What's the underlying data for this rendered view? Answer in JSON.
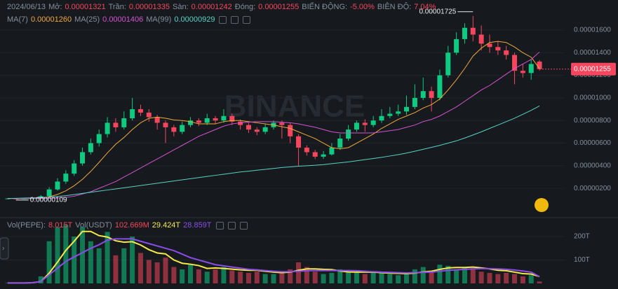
{
  "chart_data": {
    "type": "candlestick",
    "header": {
      "date": "2024/06/13",
      "items": [
        {
          "label": "Mở:",
          "value": "0.00001321"
        },
        {
          "label": "Trần:",
          "value": "0.00001335"
        },
        {
          "label": "Sàn:",
          "value": "0.00001242"
        },
        {
          "label": "Đóng:",
          "value": "0.00001255"
        },
        {
          "label": "BIẾN ĐỘNG:",
          "value": "-5.00%"
        },
        {
          "label": "BIÊN ĐỘ:",
          "value": "7.04%"
        }
      ]
    },
    "watermark": "BINANCE",
    "up_color": "#0ecb81",
    "down_color": "#f6465d",
    "grid": true,
    "ylim": [
      -2.2e-07,
      1.866e-05
    ],
    "yticks": [
      {
        "value": 1.6e-05,
        "label": "0.00001600"
      },
      {
        "value": 1.4e-05,
        "label": "0.00001400"
      },
      {
        "value": 1.2e-05,
        "label": "0.00001200"
      },
      {
        "value": 1e-05,
        "label": "0.00001000"
      },
      {
        "value": 8e-06,
        "label": "0.00000800"
      },
      {
        "value": 6e-06,
        "label": "0.00000600"
      },
      {
        "value": 4e-06,
        "label": "0.00000400"
      },
      {
        "value": 2e-06,
        "label": "0.00000200"
      }
    ],
    "last_price_label": "0.00001255",
    "high_label": "0.00001725",
    "low_label": "0.00000109",
    "ohlc": {
      "open": [
        1.1e-06,
        1.1e-06,
        1.09e-06,
        1.11e-06,
        1.12e-06,
        1.3e-06,
        1.9e-06,
        2.6e-06,
        3.3e-06,
        4.2e-06,
        5.2e-06,
        6e-06,
        6.8e-06,
        7.8e-06,
        7.4e-06,
        8.2e-06,
        9e-06,
        8.7e-06,
        8.3e-06,
        7.8e-06,
        7.4e-06,
        7e-06,
        7.6e-06,
        8e-06,
        7.8e-06,
        8.2e-06,
        8e-06,
        8.4e-06,
        7.9e-06,
        7.6e-06,
        7.2e-06,
        7e-06,
        7.4e-06,
        7.8e-06,
        7.6e-06,
        6.6e-06,
        5.6e-06,
        5.2e-06,
        4.8e-06,
        5e-06,
        5.6e-06,
        6.4e-06,
        7.2e-06,
        7.8e-06,
        7.6e-06,
        8e-06,
        8.4e-06,
        8.6e-06,
        8.8e-06,
        9.2e-06,
        1e-05,
        1.06e-05,
        1e-05,
        1.2e-05,
        1.4e-05,
        1.52e-05,
        1.62e-05,
        1.56e-05,
        1.48e-05,
        1.45e-05,
        1.42e-05,
        1.38e-05,
        1.24e-05,
        1.22e-05,
        1.321e-05
      ],
      "high": [
        1.12e-06,
        1.11e-06,
        1.13e-06,
        1.14e-06,
        1.4e-06,
        2.1e-06,
        2.9e-06,
        3.6e-06,
        4.5e-06,
        5.6e-06,
        6.4e-06,
        7.2e-06,
        8.3e-06,
        8.2e-06,
        8.8e-06,
        1e-05,
        9.4e-06,
        9e-06,
        8.5e-06,
        8e-06,
        7.6e-06,
        7.9e-06,
        8.3e-06,
        8.2e-06,
        8.6e-06,
        8.4e-06,
        9e-06,
        8.6e-06,
        8.1e-06,
        7.8e-06,
        7.4e-06,
        7.7e-06,
        8e-06,
        8e-06,
        7.8e-06,
        6.8e-06,
        5.8e-06,
        5.4e-06,
        5.3e-06,
        6e-06,
        6.8e-06,
        7.6e-06,
        8e-06,
        8.1e-06,
        8.4e-06,
        9e-06,
        9.2e-06,
        9.4e-06,
        1.02e-05,
        1.12e-05,
        1.18e-05,
        1.1e-05,
        1.25e-05,
        1.46e-05,
        1.58e-05,
        1.66e-05,
        1.725e-05,
        1.64e-05,
        1.56e-05,
        1.5e-05,
        1.46e-05,
        1.4e-05,
        1.3e-05,
        1.34e-05,
        1.335e-05
      ],
      "low": [
        1.1e-06,
        1.09e-06,
        1.09e-06,
        1.1e-06,
        1.11e-06,
        1.25e-06,
        1.8e-06,
        2.4e-06,
        3.1e-06,
        4e-06,
        5e-06,
        5.7e-06,
        6.5e-06,
        7e-06,
        7.2e-06,
        8e-06,
        8.4e-06,
        7.9e-06,
        7.2e-06,
        6e-06,
        6.6e-06,
        6.8e-06,
        7.4e-06,
        7.5e-06,
        7.6e-06,
        7.7e-06,
        7.8e-06,
        7.6e-06,
        7.2e-06,
        6.9e-06,
        6.7e-06,
        6.8e-06,
        7.2e-06,
        6.4e-06,
        6e-06,
        4e-06,
        4.9e-06,
        4.6e-06,
        4.6e-06,
        4.9e-06,
        5.4e-06,
        6.2e-06,
        7e-06,
        7e-06,
        7.4e-06,
        7.8e-06,
        8.2e-06,
        8.4e-06,
        8.5e-06,
        9e-06,
        9.8e-06,
        8.8e-06,
        9.8e-06,
        1.18e-05,
        1.38e-05,
        1.48e-05,
        1.5e-05,
        1.42e-05,
        1.4e-05,
        1.38e-05,
        1.34e-05,
        1.12e-05,
        1.18e-05,
        1.16e-05,
        1.242e-05
      ],
      "close": [
        1.1e-06,
        1.09e-06,
        1.11e-06,
        1.12e-06,
        1.3e-06,
        1.9e-06,
        2.6e-06,
        3.3e-06,
        4.2e-06,
        5.2e-06,
        6e-06,
        6.8e-06,
        7.8e-06,
        7.4e-06,
        8.2e-06,
        9e-06,
        8.7e-06,
        8.3e-06,
        7.8e-06,
        7.4e-06,
        7e-06,
        7.6e-06,
        8e-06,
        7.8e-06,
        8.2e-06,
        8e-06,
        8.4e-06,
        7.9e-06,
        7.6e-06,
        7.2e-06,
        7e-06,
        7.4e-06,
        7.8e-06,
        7.6e-06,
        6.6e-06,
        5.6e-06,
        5.2e-06,
        4.8e-06,
        5e-06,
        5.6e-06,
        6.4e-06,
        7.2e-06,
        7.8e-06,
        7.6e-06,
        8e-06,
        8.4e-06,
        8.6e-06,
        8.8e-06,
        9.2e-06,
        1e-05,
        1.06e-05,
        1e-05,
        1.2e-05,
        1.4e-05,
        1.52e-05,
        1.62e-05,
        1.56e-05,
        1.48e-05,
        1.45e-05,
        1.42e-05,
        1.38e-05,
        1.24e-05,
        1.22e-05,
        1.3e-05,
        1.255e-05
      ]
    },
    "ma_series": [
      {
        "name": "MA(7)",
        "color": "#f0a93b",
        "value_label": "0.00001260",
        "values": [
          1.1e-06,
          1.1e-06,
          1.1e-06,
          1.1e-06,
          1.13e-06,
          1.25e-06,
          1.46e-06,
          1.78e-06,
          2.23e-06,
          2.8e-06,
          3.5e-06,
          4.3e-06,
          5.13e-06,
          5.9e-06,
          6.5e-06,
          7.2e-06,
          7.8e-06,
          8.2e-06,
          8.3e-06,
          8.2e-06,
          8.05e-06,
          8e-06,
          7.9e-06,
          7.7e-06,
          7.7e-06,
          7.7e-06,
          7.9e-06,
          8e-06,
          8e-06,
          7.9e-06,
          7.8e-06,
          7.7e-06,
          7.6e-06,
          7.45e-06,
          7.3e-06,
          7e-06,
          6.7e-06,
          6.4e-06,
          6e-06,
          5.6e-06,
          5.5e-06,
          5.6e-06,
          6e-06,
          6.4e-06,
          6.8e-06,
          7.3e-06,
          7.7e-06,
          8.1e-06,
          8.4e-06,
          8.7e-06,
          9.1e-06,
          9.4e-06,
          9.9e-06,
          1.07e-05,
          1.16e-05,
          1.26e-05,
          1.37e-05,
          1.44e-05,
          1.49e-05,
          1.5e-05,
          1.49e-05,
          1.45e-05,
          1.4e-05,
          1.36e-05,
          1.26e-05
        ]
      },
      {
        "name": "MA(25)",
        "color": "#d453d0",
        "value_label": "0.00001406",
        "values": [
          1.1e-06,
          1.1e-06,
          1.1e-06,
          1.1e-06,
          1.1e-06,
          1.1e-06,
          1.15e-06,
          1.2e-06,
          1.3e-06,
          1.5e-06,
          1.7e-06,
          2e-06,
          2.3e-06,
          2.6e-06,
          3e-06,
          3.4e-06,
          3.8e-06,
          4.2e-06,
          4.6e-06,
          5e-06,
          5.4e-06,
          5.8e-06,
          6.2e-06,
          6.6e-06,
          6.9e-06,
          7.2e-06,
          7.5e-06,
          7.7e-06,
          7.8e-06,
          7.85e-06,
          7.9e-06,
          7.9e-06,
          7.9e-06,
          7.85e-06,
          7.8e-06,
          7.7e-06,
          7.55e-06,
          7.4e-06,
          7.2e-06,
          7e-06,
          6.9e-06,
          6.9e-06,
          6.9e-06,
          6.9e-06,
          6.9e-06,
          7e-06,
          7.1e-06,
          7.2e-06,
          7.4e-06,
          7.6e-06,
          7.9e-06,
          8.1e-06,
          8.4e-06,
          8.8e-06,
          9.2e-06,
          9.7e-06,
          1.02e-05,
          1.07e-05,
          1.11e-05,
          1.16e-05,
          1.21e-05,
          1.26e-05,
          1.3e-05,
          1.34e-05,
          1.406e-05
        ]
      },
      {
        "name": "MA(99)",
        "color": "#5ad1c6",
        "value_label": "0.00000929",
        "values": [
          1.1e-06,
          1.12e-06,
          1.14e-06,
          1.16e-06,
          1.18e-06,
          1.22e-06,
          1.28e-06,
          1.35e-06,
          1.45e-06,
          1.55e-06,
          1.65e-06,
          1.75e-06,
          1.85e-06,
          1.95e-06,
          2.05e-06,
          2.15e-06,
          2.25e-06,
          2.35e-06,
          2.45e-06,
          2.55e-06,
          2.65e-06,
          2.75e-06,
          2.85e-06,
          2.95e-06,
          3.05e-06,
          3.15e-06,
          3.25e-06,
          3.35e-06,
          3.45e-06,
          3.52e-06,
          3.6e-06,
          3.68e-06,
          3.76e-06,
          3.84e-06,
          3.9e-06,
          3.96e-06,
          4e-06,
          4.04e-06,
          4.1e-06,
          4.18e-06,
          4.26e-06,
          4.34e-06,
          4.44e-06,
          4.54e-06,
          4.64e-06,
          4.74e-06,
          4.86e-06,
          4.98e-06,
          5.12e-06,
          5.28e-06,
          5.45e-06,
          5.62e-06,
          5.8e-06,
          6e-06,
          6.2e-06,
          6.45e-06,
          6.72e-06,
          7e-06,
          7.3e-06,
          7.6e-06,
          7.9e-06,
          8.2e-06,
          8.55e-06,
          8.9e-06,
          9.29e-06
        ]
      }
    ],
    "volume": {
      "type": "bar",
      "legend": [
        {
          "text": "Vol(PEPE):",
          "color": "#848e9c"
        },
        {
          "text": "8.015T",
          "color": "#f6465d"
        },
        {
          "text": "Vol(USDT)",
          "color": "#848e9c"
        },
        {
          "text": "102.669M",
          "color": "#f6465d"
        }
      ],
      "ylim": [
        0,
        248
      ],
      "yticks": [
        {
          "value": 200,
          "label": "200T"
        },
        {
          "value": 100,
          "label": "100T"
        }
      ],
      "values": [
        2,
        2,
        3,
        3,
        30,
        180,
        240,
        250,
        200,
        240,
        180,
        150,
        220,
        120,
        150,
        200,
        130,
        100,
        90,
        110,
        70,
        60,
        80,
        60,
        50,
        60,
        70,
        55,
        50,
        45,
        50,
        40,
        40,
        50,
        60,
        90,
        70,
        50,
        40,
        45,
        60,
        50,
        45,
        40,
        50,
        45,
        40,
        35,
        40,
        60,
        70,
        55,
        80,
        75,
        60,
        70,
        65,
        50,
        45,
        40,
        45,
        40,
        30,
        35,
        8.015
      ],
      "ma_series": [
        {
          "color": "#f5e94b",
          "value_label": "29.424T",
          "values": [
            2,
            2,
            2,
            3,
            8,
            44,
            91,
            141,
            180,
            222,
            222,
            204,
            198,
            182,
            176,
            178,
            164,
            144,
            130,
            126,
            100,
            86,
            82,
            76,
            64,
            66,
            64,
            61,
            58,
            56,
            56,
            52,
            48,
            46,
            48,
            56,
            62,
            62,
            60,
            59,
            53,
            49,
            48,
            48,
            48,
            46,
            44,
            43,
            42,
            44,
            49,
            52,
            60,
            66,
            68,
            68,
            70,
            66,
            62,
            56,
            54,
            48,
            42,
            40,
            29.424
          ]
        },
        {
          "color": "#8a4de8",
          "value_label": "28.859T",
          "values": [
            2,
            2,
            2,
            3,
            8,
            37,
            65,
            94,
            113,
            131,
            150,
            165,
            185,
            190,
            190,
            190,
            180,
            170,
            160,
            150,
            140,
            125,
            110,
            100,
            90,
            80,
            75,
            70,
            65,
            60,
            58,
            55,
            52,
            50,
            50,
            52,
            54,
            55,
            55,
            55,
            55,
            55,
            54,
            52,
            50,
            48,
            47,
            46,
            45,
            46,
            47,
            48,
            52,
            56,
            58,
            60,
            62,
            63,
            63,
            62,
            60,
            57,
            53,
            48,
            28.859
          ]
        }
      ]
    }
  }
}
